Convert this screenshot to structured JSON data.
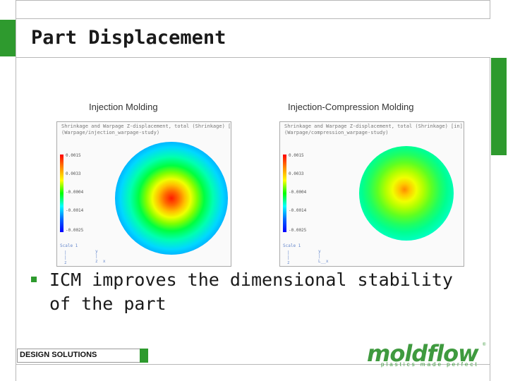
{
  "slide": {
    "title": "Part Displacement",
    "bullet": "ICM improves the dimensional stability of the part",
    "footer_label": "DESIGN SOLUTIONS"
  },
  "plots": [
    {
      "caption": "Injection Molding",
      "header_line1": "Shrinkage and Warpage Z-displacement, total (Shrinkage) [in]",
      "header_line2": "(Warpage/injection_warpage-study)",
      "legend_ticks": [
        "0.0015",
        "0.0033",
        "-0.0004",
        "-0.0014",
        "-0.0025"
      ],
      "scale_label": "Scale 1"
    },
    {
      "caption": "Injection-Compression Molding",
      "header_line1": "Shrinkage and Warpage Z-displacement, total (Shrinkage) [in]",
      "header_line2": "(Warpage/compression_warpage-study)",
      "legend_ticks": [
        "0.0015",
        "0.0033",
        "-0.0004",
        "-0.0014",
        "-0.0025"
      ],
      "scale_label": "Scale 1"
    }
  ],
  "logo": {
    "name": "moldflow",
    "tagline": "plastics made perfect",
    "registered": "®"
  },
  "colors": {
    "accent": "#2e9a2e",
    "frame": "#b8b8b8"
  }
}
